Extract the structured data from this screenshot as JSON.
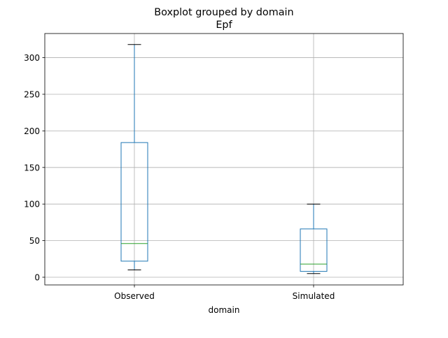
{
  "chart_data": {
    "type": "boxplot",
    "title": "Boxplot grouped by domain",
    "subtitle": "Epf",
    "xlabel": "domain",
    "ylabel": "",
    "categories": [
      "Observed",
      "Simulated"
    ],
    "boxes": [
      {
        "category": "Observed",
        "whisker_low": 10,
        "q1": 22,
        "median": 46,
        "q3": 184,
        "whisker_high": 318
      },
      {
        "category": "Simulated",
        "whisker_low": 5,
        "q1": 8,
        "median": 18,
        "q3": 66,
        "whisker_high": 100
      }
    ],
    "ylim": [
      -10.5,
      333
    ],
    "yticks": [
      0,
      50,
      100,
      150,
      200,
      250,
      300
    ],
    "grid": true,
    "colors": {
      "box": "#1f77b4",
      "median": "#2ca02c",
      "caps": "#000000",
      "grid": "#b0b0b0"
    }
  }
}
